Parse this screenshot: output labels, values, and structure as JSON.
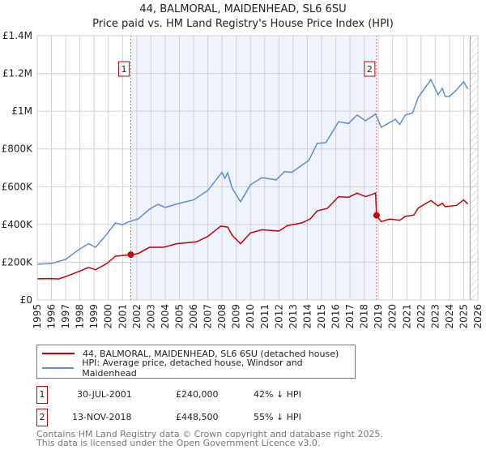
{
  "chart_data": {
    "type": "line",
    "title": "44, BALMORAL, MAIDENHEAD, SL6 6SU",
    "subtitle": "Price paid vs. HM Land Registry's House Price Index (HPI)",
    "xlabel": "",
    "ylabel": "",
    "xlim": [
      1995,
      2026
    ],
    "ylim": [
      0,
      1400000
    ],
    "y_ticks": [
      {
        "v": 0,
        "label": "£0"
      },
      {
        "v": 200000,
        "label": "£200K"
      },
      {
        "v": 400000,
        "label": "£400K"
      },
      {
        "v": 600000,
        "label": "£600K"
      },
      {
        "v": 800000,
        "label": "£800K"
      },
      {
        "v": 1000000,
        "label": "£1M"
      },
      {
        "v": 1200000,
        "label": "£1.2M"
      },
      {
        "v": 1400000,
        "label": "£1.4M"
      }
    ],
    "x_ticks": [
      "1995",
      "1996",
      "1997",
      "1998",
      "1999",
      "2000",
      "2001",
      "2002",
      "2003",
      "2004",
      "2005",
      "2006",
      "2007",
      "2008",
      "2009",
      "2010",
      "2011",
      "2012",
      "2013",
      "2014",
      "2015",
      "2016",
      "2017",
      "2018",
      "2019",
      "2020",
      "2021",
      "2022",
      "2023",
      "2024",
      "2025",
      "2026"
    ],
    "grid": true,
    "shaded_range": [
      2001.58,
      2018.87
    ],
    "hatched_from": 2025.45,
    "series": [
      {
        "name": "44, BALMORAL, MAIDENHEAD, SL6 6SU (detached house)",
        "color": "#cc0000",
        "x": [
          1995,
          1996,
          1996.5,
          1997,
          1997.9,
          1998.6,
          1999.1,
          1999.9,
          2000.5,
          2001.58,
          2002.1,
          2002.9,
          2003.9,
          2004.8,
          2006.2,
          2007,
          2007.9,
          2008.4,
          2008.7,
          2009.3,
          2010,
          2010.8,
          2012,
          2012.6,
          2013.6,
          2014.2,
          2014.7,
          2015.4,
          2016.2,
          2016.9,
          2017.5,
          2018.1,
          2018.8,
          2018.87,
          2019.2,
          2019.8,
          2020.5,
          2020.9,
          2021.5,
          2021.8,
          2022.7,
          2023.2,
          2023.5,
          2023.7,
          2024.5,
          2025,
          2025.3
        ],
        "y": [
          112000,
          113000,
          111000,
          124000,
          150000,
          172000,
          160000,
          193000,
          232000,
          240000,
          246000,
          279000,
          279000,
          298000,
          308000,
          336000,
          391000,
          386000,
          344000,
          298000,
          355000,
          372000,
          365000,
          394000,
          408000,
          429000,
          472000,
          485000,
          547000,
          544000,
          566000,
          547000,
          566000,
          448500,
          415000,
          429000,
          422000,
          443000,
          450000,
          487000,
          527000,
          498000,
          512000,
          494000,
          501000,
          530000,
          508000
        ]
      },
      {
        "name": "HPI: Average price, detached house, Windsor and Maidenhead",
        "color": "#5b8fd4",
        "x": [
          1995,
          1996,
          1997,
          1997.9,
          1998.6,
          1999.1,
          1999.7,
          2000.5,
          2001,
          2001.5,
          2002.1,
          2002.9,
          2003.5,
          2004,
          2005,
          2006,
          2007,
          2008,
          2008.2,
          2008.4,
          2008.7,
          2009.3,
          2010,
          2010.8,
          2011.8,
          2012.4,
          2012.9,
          2014.1,
          2014.7,
          2015.3,
          2016.2,
          2016.9,
          2017.5,
          2018.1,
          2018.8,
          2019.2,
          2020.2,
          2020.5,
          2020.9,
          2021.4,
          2021.8,
          2022.7,
          2023.2,
          2023.5,
          2023.7,
          2024,
          2024.5,
          2025,
          2025.3
        ],
        "y": [
          189000,
          193000,
          215000,
          266000,
          298000,
          279000,
          331000,
          408000,
          399000,
          416000,
          429000,
          481000,
          507000,
          490000,
          512000,
          530000,
          580000,
          676000,
          644000,
          674000,
          594000,
          520000,
          610000,
          648000,
          636000,
          680000,
          676000,
          739000,
          830000,
          833000,
          944000,
          935000,
          980000,
          949000,
          985000,
          915000,
          957000,
          930000,
          980000,
          990000,
          1073000,
          1167000,
          1088000,
          1120000,
          1078000,
          1078000,
          1113000,
          1156000,
          1117000
        ]
      }
    ],
    "sales": [
      {
        "label": "1",
        "x": 2001.58,
        "y": 240000,
        "date": "30-JUL-2001",
        "price": "£240,000",
        "hpi": "42% ↓ HPI"
      },
      {
        "label": "2",
        "x": 2018.87,
        "y": 448500,
        "date": "13-NOV-2018",
        "price": "£448,500",
        "hpi": "55% ↓ HPI"
      }
    ]
  },
  "footer": {
    "line1": "Contains HM Land Registry data © Crown copyright and database right 2025.",
    "line2": "This data is licensed under the Open Government Licence v3.0."
  }
}
